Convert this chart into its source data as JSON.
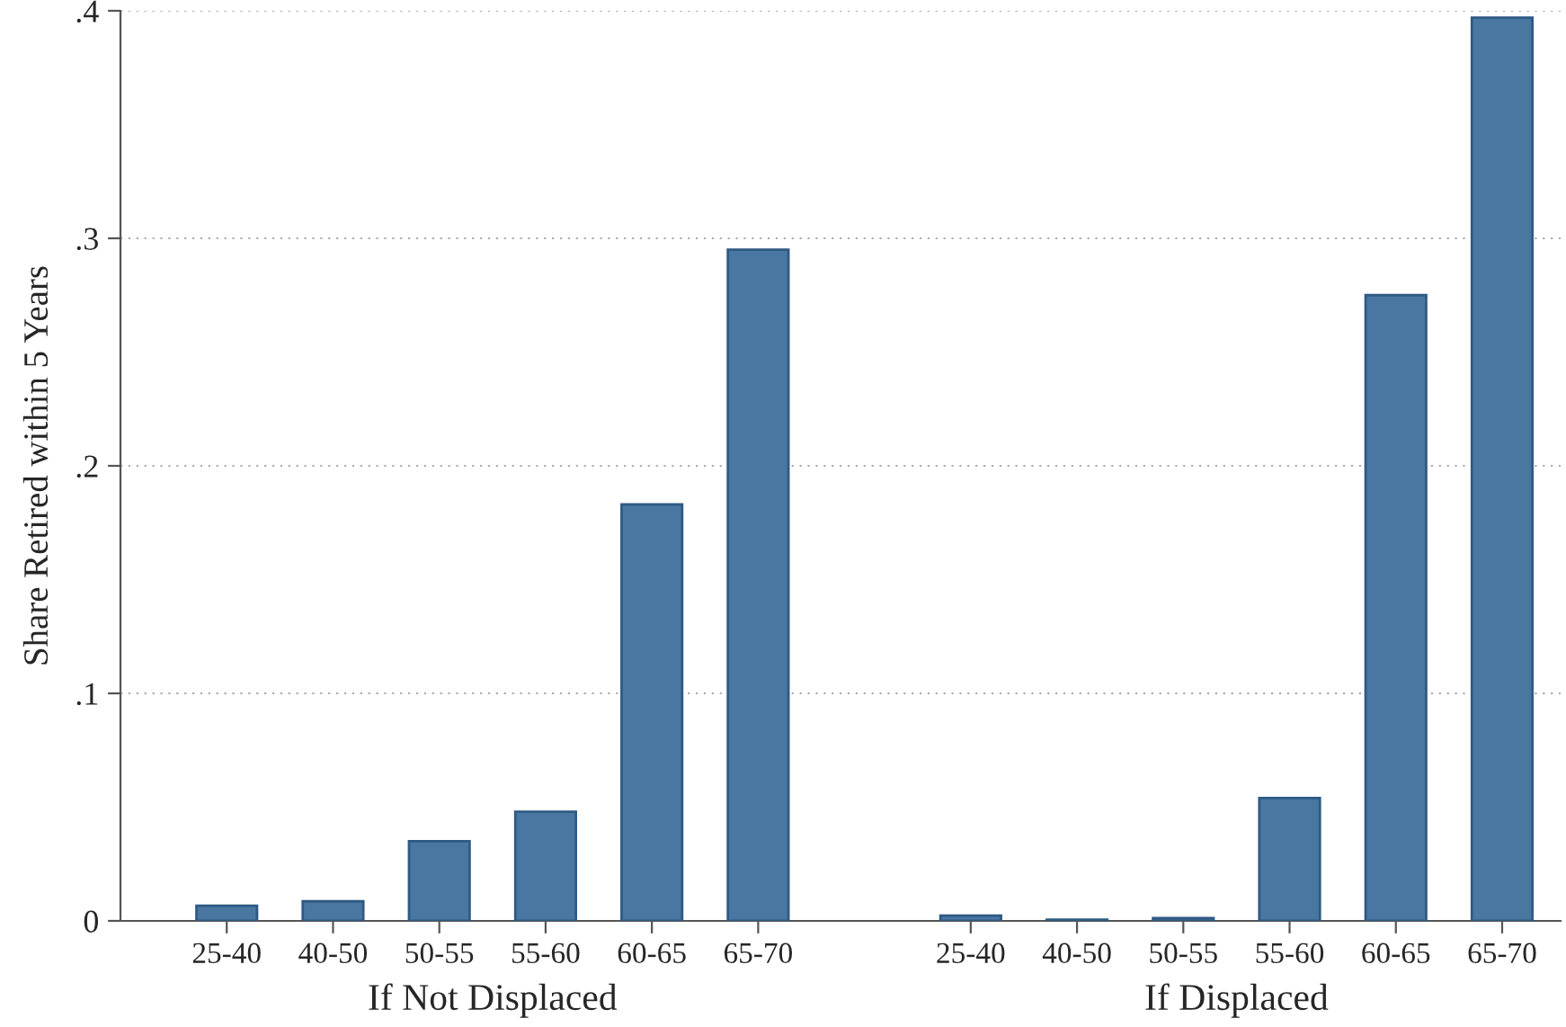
{
  "chart_data": {
    "type": "bar",
    "ylabel": "Share Retired within 5 Years",
    "categories": [
      "25-40",
      "40-50",
      "50-55",
      "55-60",
      "60-65",
      "65-70",
      null,
      "25-40",
      "40-50",
      "50-55",
      "55-60",
      "60-65",
      "65-70"
    ],
    "values": [
      0.0067,
      0.0086,
      0.035,
      0.048,
      0.183,
      0.295,
      null,
      0.0023,
      0.0005,
      0.0012,
      0.054,
      0.275,
      0.397
    ],
    "color": "#4a77a2",
    "ylim": [
      0,
      0.4
    ],
    "yticks": [
      0,
      {
        "value": 0.1,
        "label": ".1"
      },
      {
        "value": 0.2,
        "label": ".2"
      },
      {
        "value": 0.3,
        "label": ".3"
      },
      {
        "value": 0.4,
        "label": ".4"
      }
    ],
    "grid": "y",
    "annotations": [
      "If Not Displaced",
      "If Displaced"
    ]
  }
}
